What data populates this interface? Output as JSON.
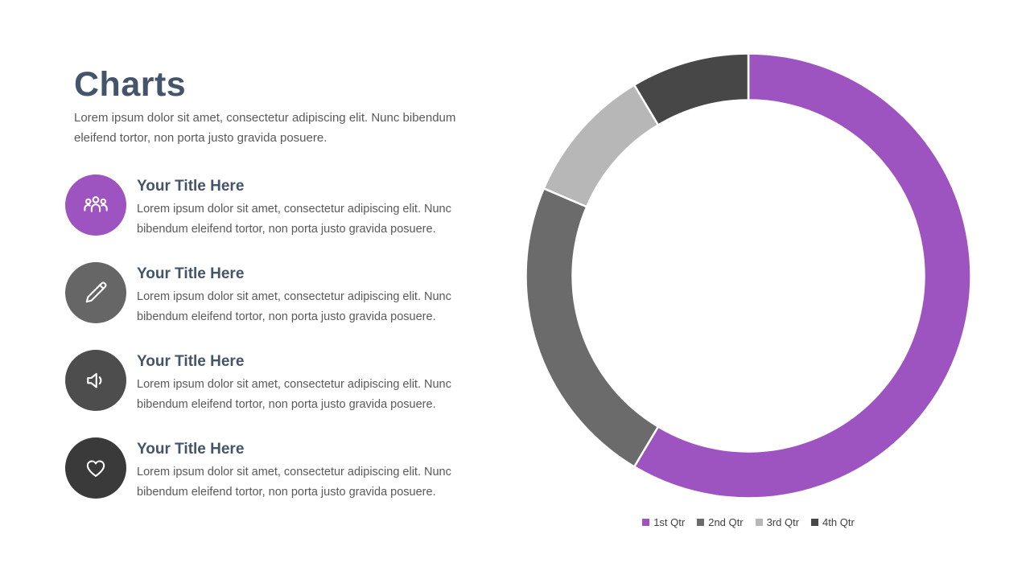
{
  "theme": {
    "accent": "#9E54C0",
    "heading": "#44546A",
    "body_text": "#595959"
  },
  "slide": {
    "title": "Charts",
    "subtitle": "Lorem ipsum dolor sit amet, consectetur adipiscing elit. Nunc bibendum eleifend tortor, non porta justo gravida posuere."
  },
  "items": [
    {
      "icon": "people-icon",
      "circle_color": "#9E54C0",
      "title": "Your Title Here",
      "body": "Lorem ipsum dolor sit amet, consectetur adipiscing elit. Nunc bibendum eleifend tortor, non porta justo gravida posuere."
    },
    {
      "icon": "pencil-icon",
      "circle_color": "#666666",
      "title": "Your Title Here",
      "body": "Lorem ipsum dolor sit amet, consectetur adipiscing elit. Nunc bibendum eleifend tortor, non porta justo gravida posuere."
    },
    {
      "icon": "speaker-icon",
      "circle_color": "#4D4D4D",
      "title": "Your Title Here",
      "body": "Lorem ipsum dolor sit amet, consectetur adipiscing elit. Nunc bibendum eleifend tortor, non porta justo gravida posuere."
    },
    {
      "icon": "heart-icon",
      "circle_color": "#3A3A3A",
      "title": "Your Title Here",
      "body": "Lorem ipsum dolor sit amet, consectetur adipiscing elit. Nunc bibendum eleifend tortor, non porta justo gravida posuere."
    }
  ],
  "chart_data": {
    "type": "pie",
    "subtype": "donut",
    "title": "",
    "categories": [
      "1st Qtr",
      "2nd Qtr",
      "3rd Qtr",
      "4th Qtr"
    ],
    "values": [
      8.2,
      3.2,
      1.4,
      1.2
    ],
    "percentages": [
      58.6,
      22.9,
      10.0,
      8.6
    ],
    "colors": [
      "#9E54C0",
      "#6B6B6B",
      "#B7B7B7",
      "#474747"
    ],
    "start_angle_deg": 0,
    "direction": "clockwise",
    "inner_radius_ratio": 0.79,
    "legend_position": "bottom",
    "separator_color": "#FFFFFF"
  }
}
